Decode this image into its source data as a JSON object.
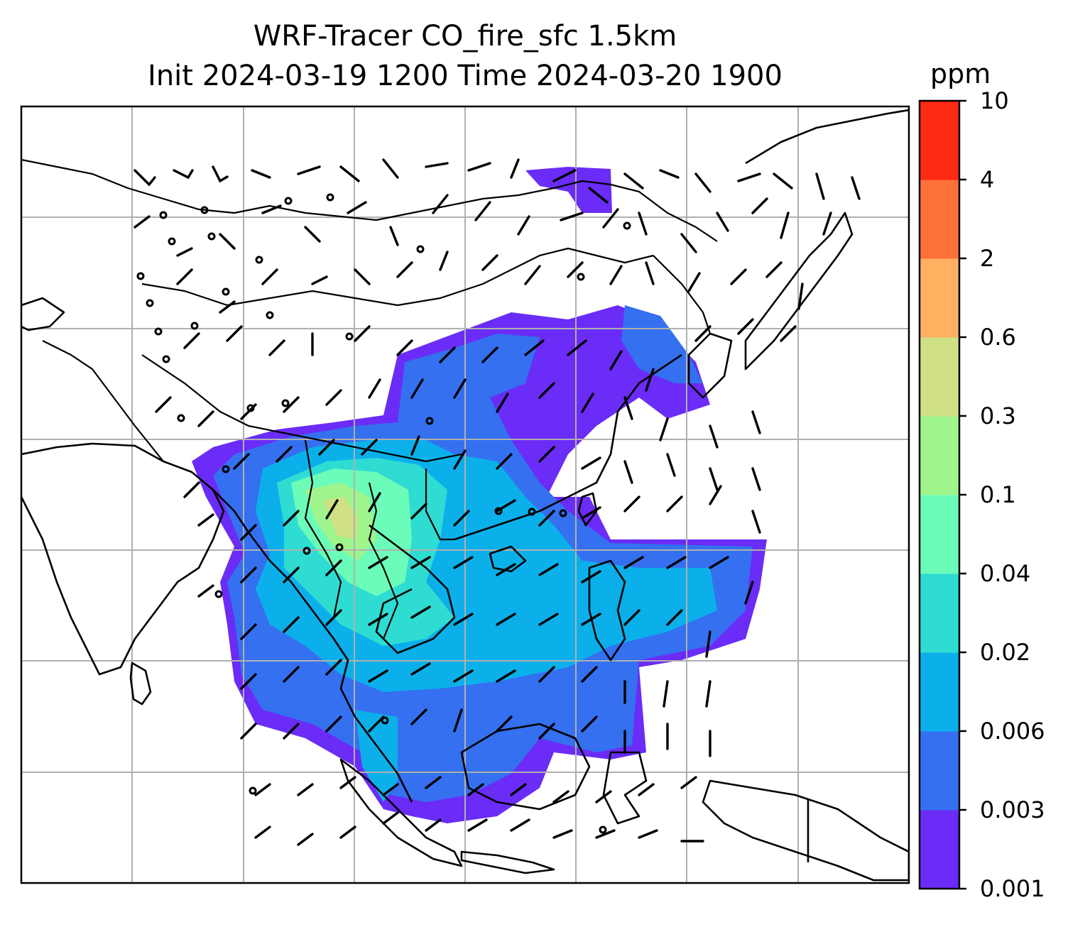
{
  "title": {
    "line1": "WRF-Tracer CO_fire_sfc 1.5km",
    "line2": "Init 2024-03-19 1200 Time 2024-03-20 1900"
  },
  "colorbar": {
    "units": "ppm",
    "ticks": [
      "0.001",
      "0.003",
      "0.006",
      "0.02",
      "0.04",
      "0.1",
      "0.3",
      "0.6",
      "2",
      "4",
      "10"
    ],
    "colors": [
      "#6a2cf6",
      "#3470f0",
      "#0bb0ea",
      "#2fdcd2",
      "#6bfcb9",
      "#9ff58c",
      "#cfe085",
      "#ffb061",
      "#fe7139",
      "#ff2a14"
    ]
  },
  "map": {
    "field": "CO_fire_sfc",
    "overlays": [
      "coastlines",
      "country-borders",
      "gridlines",
      "wind-barbs"
    ]
  }
}
